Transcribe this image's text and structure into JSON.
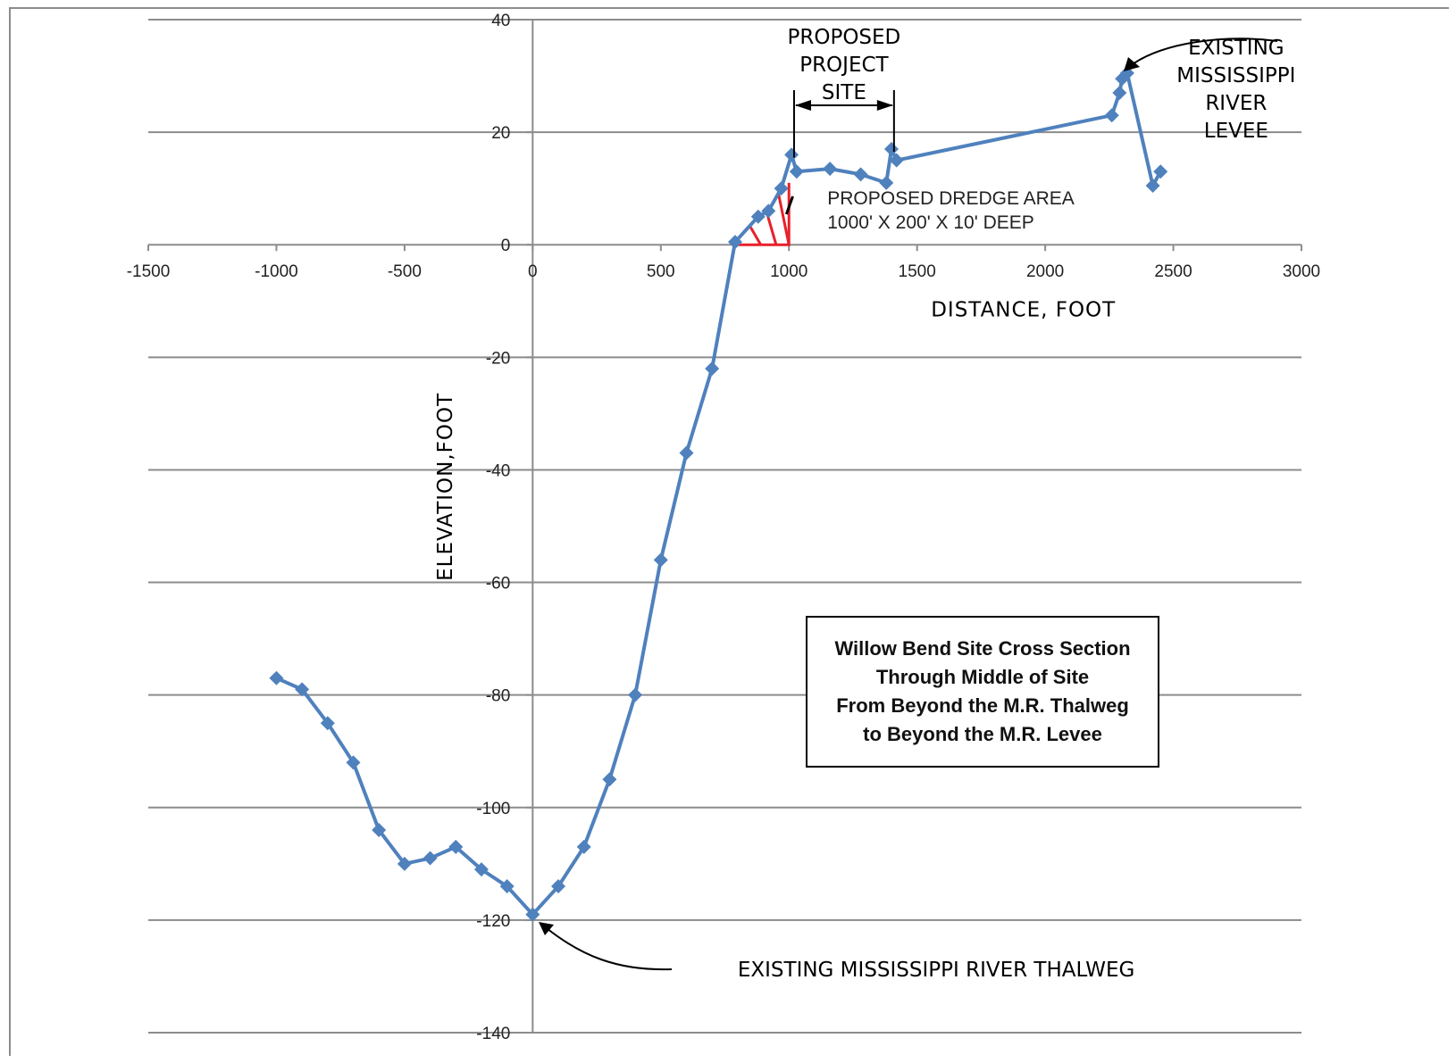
{
  "chart_data": {
    "type": "line",
    "xlabel": "DISTANCE, FOOT",
    "ylabel": "ELEVATION,FOOT",
    "xlim": [
      -1500,
      3000
    ],
    "ylim": [
      -140,
      40
    ],
    "x_ticks": [
      "-1500",
      "-1000",
      "-500",
      "0",
      "500",
      "1000",
      "1500",
      "2000",
      "2500",
      "3000"
    ],
    "y_ticks": [
      "40",
      "20",
      "0",
      "-20",
      "-40",
      "-60",
      "-80",
      "-100",
      "-120",
      "-140"
    ],
    "grid": "horizontal",
    "series_color": "#4f81bd",
    "series": [
      {
        "x": [
          -1000,
          -900,
          -800,
          -700,
          -600,
          -500,
          -400,
          -300,
          -200,
          -100,
          0,
          100,
          200,
          300,
          400,
          500,
          600,
          700,
          790,
          880,
          920,
          970,
          1010,
          1030,
          1160,
          1280,
          1380,
          1400,
          1420,
          2260,
          2290,
          2300,
          2320,
          2420,
          2450
        ],
        "y": [
          -77,
          -79,
          -85,
          -92,
          -104,
          -110,
          -109,
          -107,
          -111,
          -114,
          -119,
          -114,
          -107,
          -95,
          -80,
          -56,
          -37,
          -22,
          0.5,
          5,
          6,
          10,
          16,
          13,
          13.5,
          12.5,
          11,
          17,
          15,
          23,
          27,
          29.5,
          30.5,
          10.5,
          13
        ]
      }
    ],
    "dredge_area": {
      "x": [
        790,
        1000
      ],
      "y_top": 11,
      "y_bottom": 0,
      "color": "#e8202a"
    },
    "project_site_dimension": {
      "x_start": 1020,
      "x_end": 1410
    },
    "annotations": {
      "project_site": [
        "PROPOSED",
        "PROJECT",
        "SITE"
      ],
      "dredge_area": [
        "PROPOSED DREDGE AREA",
        "1000' X 200' X 10' DEEP"
      ],
      "levee": [
        "EXISTING",
        "MISSISSIPPI",
        "RIVER",
        "LEVEE"
      ],
      "thalweg": "EXISTING  MISSISSIPPI  RIVER  THALWEG"
    },
    "info_box": [
      "Willow Bend Site Cross Section",
      "Through Middle of Site",
      "From Beyond the M.R. Thalweg",
      "to Beyond the M.R. Levee"
    ]
  }
}
